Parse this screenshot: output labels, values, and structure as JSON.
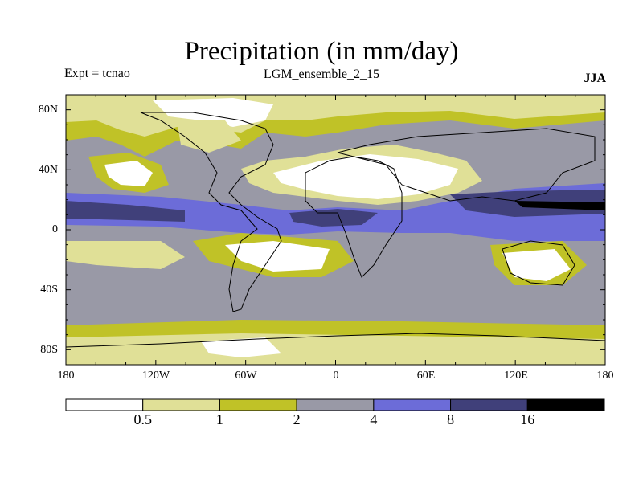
{
  "title": "Precipitation (in mm/day)",
  "experiment": "Expt = tcnao",
  "ensemble": "LGM_ensemble_2_15",
  "season": "JJA",
  "lat_labels": [
    "80N",
    "40N",
    "0",
    "40S",
    "80S"
  ],
  "lon_labels": [
    "180",
    "120W",
    "60W",
    "0",
    "60E",
    "120E",
    "180"
  ],
  "colorbar": {
    "colors": [
      "#ffffff",
      "#e0e097",
      "#c0c227",
      "#9999a6",
      "#6c6cd8",
      "#40407a",
      "#000000"
    ],
    "labels": [
      "0.5",
      "1",
      "2",
      "4",
      "8",
      "16"
    ]
  }
}
